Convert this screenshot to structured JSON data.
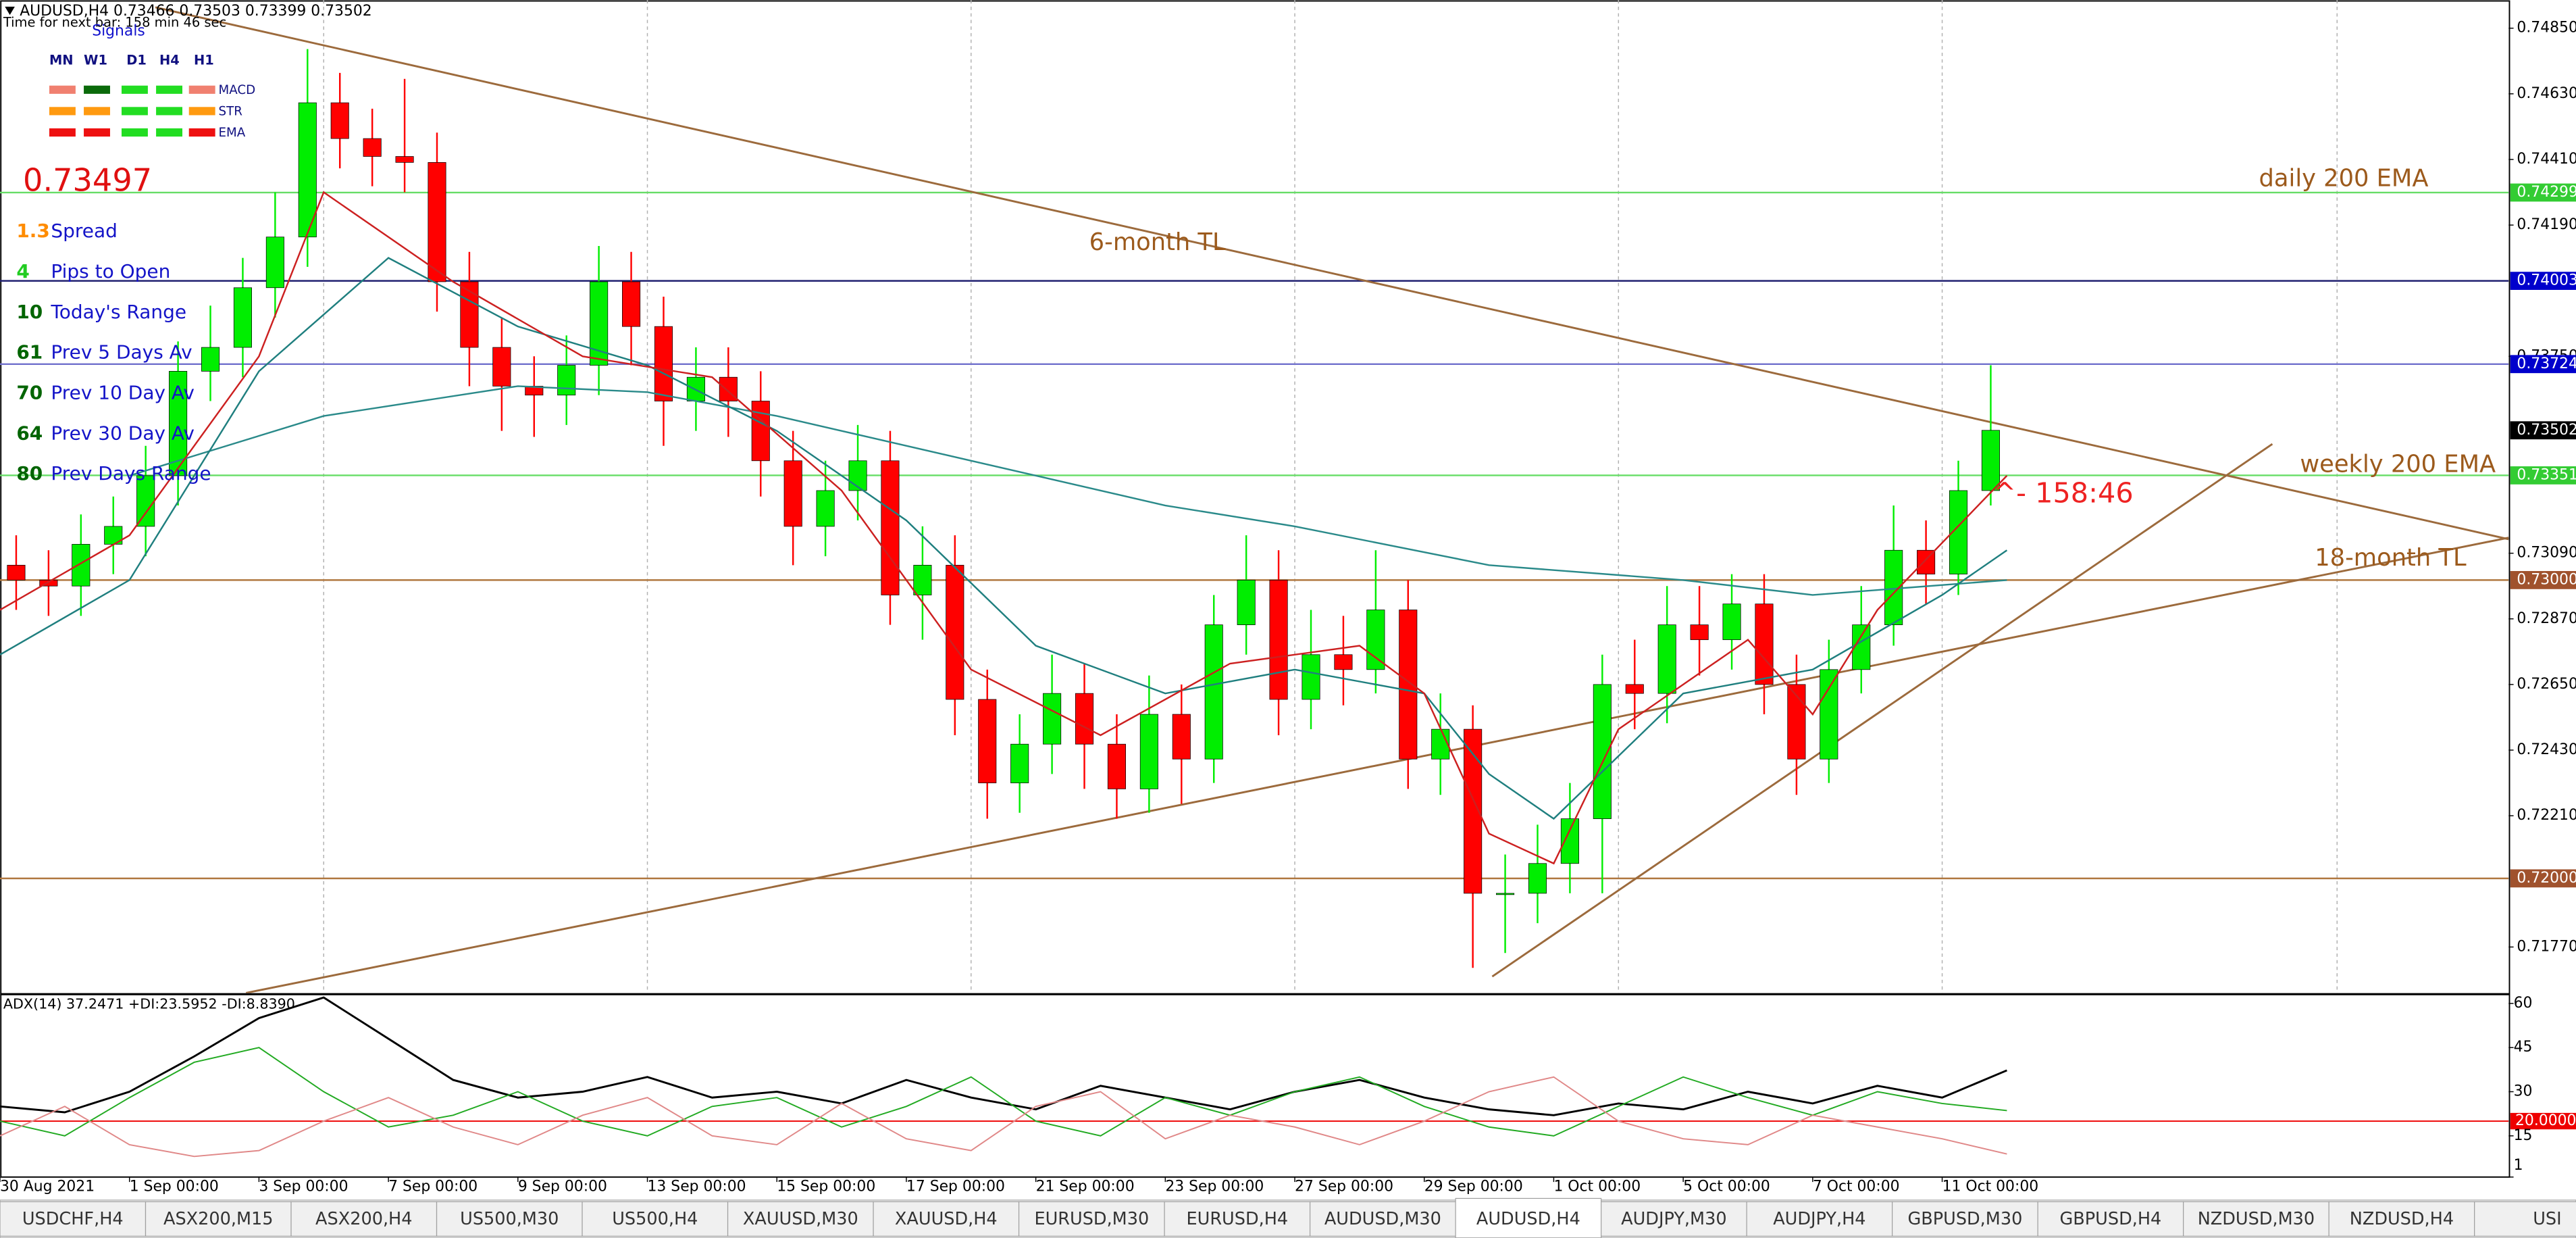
{
  "header": {
    "symbol_line": "AUDUSD,H4  0.73466 0.73503 0.73399 0.73502",
    "timer": "Time for next bar: 158 min 46 sec"
  },
  "signals_panel": {
    "title": "Signals",
    "timeframes": [
      "MN",
      "W1",
      "D1",
      "H4",
      "H1"
    ],
    "indicators": [
      "MACD",
      "STR",
      "EMA"
    ],
    "price": "0.73497",
    "rows": [
      {
        "value": "1.3",
        "label": "Spread"
      },
      {
        "value": "4",
        "label": "Pips to Open"
      },
      {
        "value": "10",
        "label": "Today's Range"
      },
      {
        "value": "61",
        "label": "Prev 5 Days Av"
      },
      {
        "value": "70",
        "label": "Prev 10 Day Av"
      },
      {
        "value": "64",
        "label": "Prev 30 Day Av"
      },
      {
        "value": "80",
        "label": "Prev Days Range"
      }
    ]
  },
  "tabs": [
    "USDCHF,H4",
    "ASX200,M15",
    "ASX200,H4",
    "US500,M30",
    "US500,H4",
    "XAUUSD,M30",
    "XAUUSD,H4",
    "EURUSD,M30",
    "EURUSD,H4",
    "AUDUSD,M30",
    "AUDUSD,H4",
    "AUDJPY,M30",
    "AUDJPY,H4",
    "GBPUSD,M30",
    "GBPUSD,H4",
    "NZDUSD,M30",
    "NZDUSD,H4",
    "USI"
  ],
  "active_tab": 10,
  "chart_data": [
    {
      "type": "candlestick",
      "xlim": [
        0,
        77.5
      ],
      "ylim": [
        0.71616,
        0.74944
      ],
      "xticks": [
        {
          "value": 0,
          "label": "30 Aug 2021"
        },
        {
          "value": 4,
          "label": "1 Sep 00:00"
        },
        {
          "value": 8,
          "label": "3 Sep 00:00"
        },
        {
          "value": 12,
          "label": "7 Sep 00:00"
        },
        {
          "value": 16,
          "label": "9 Sep 00:00"
        },
        {
          "value": 20,
          "label": "13 Sep 00:00"
        },
        {
          "value": 24,
          "label": "15 Sep 00:00"
        },
        {
          "value": 28,
          "label": "17 Sep 00:00"
        },
        {
          "value": 32,
          "label": "21 Sep 00:00"
        },
        {
          "value": 36,
          "label": "23 Sep 00:00"
        },
        {
          "value": 40,
          "label": "27 Sep 00:00"
        },
        {
          "value": 44,
          "label": "29 Sep 00:00"
        },
        {
          "value": 48,
          "label": "1 Oct 00:00"
        },
        {
          "value": 52,
          "label": "5 Oct 00:00"
        },
        {
          "value": 56,
          "label": "7 Oct 00:00"
        },
        {
          "value": 60,
          "label": "11 Oct 00:00"
        }
      ],
      "xgrid": [
        10,
        20,
        30,
        40,
        50,
        60,
        72.2
      ],
      "yticks": [
        {
          "value": 0.7485,
          "label": "0.74850"
        },
        {
          "value": 0.7463,
          "label": "0.74630"
        },
        {
          "value": 0.7441,
          "label": "0.74410"
        },
        {
          "value": 0.7419,
          "label": "0.74190"
        },
        {
          "value": 0.7375,
          "label": "0.73750"
        },
        {
          "value": 0.7309,
          "label": "0.73090"
        },
        {
          "value": 0.7287,
          "label": "0.72870"
        },
        {
          "value": 0.7265,
          "label": "0.72650"
        },
        {
          "value": 0.7243,
          "label": "0.72430"
        },
        {
          "value": 0.7221,
          "label": "0.72210"
        },
        {
          "value": 0.7177,
          "label": "0.71770"
        }
      ],
      "up_color": "#00ee00",
      "down_color": "#ff0000",
      "open": [
        0.7305,
        0.73,
        0.7298,
        0.7312,
        0.7318,
        0.7335,
        0.737,
        0.7378,
        0.7398,
        0.7415,
        0.746,
        0.7448,
        0.7442,
        0.744,
        0.74,
        0.7378,
        0.7365,
        0.7362,
        0.7372,
        0.74,
        0.7385,
        0.736,
        0.7368,
        0.736,
        0.734,
        0.7318,
        0.733,
        0.734,
        0.7295,
        0.7305,
        0.726,
        0.7232,
        0.7245,
        0.7262,
        0.7245,
        0.723,
        0.7255,
        0.724,
        0.7285,
        0.73,
        0.726,
        0.7275,
        0.727,
        0.729,
        0.724,
        0.725,
        0.7195,
        0.7195,
        0.7205,
        0.722,
        0.7265,
        0.7262,
        0.7285,
        0.728,
        0.7292,
        0.7265,
        0.724,
        0.727,
        0.7285,
        0.731,
        0.7302,
        0.733
      ],
      "high": [
        0.7315,
        0.731,
        0.7322,
        0.7328,
        0.7345,
        0.738,
        0.7392,
        0.7408,
        0.743,
        0.7478,
        0.747,
        0.7458,
        0.7468,
        0.745,
        0.741,
        0.7388,
        0.7375,
        0.7382,
        0.7412,
        0.741,
        0.7395,
        0.7378,
        0.7378,
        0.737,
        0.735,
        0.734,
        0.7352,
        0.735,
        0.7318,
        0.7315,
        0.727,
        0.7255,
        0.7275,
        0.7272,
        0.7255,
        0.7268,
        0.7265,
        0.7295,
        0.7315,
        0.731,
        0.729,
        0.7288,
        0.731,
        0.73,
        0.7262,
        0.7258,
        0.7208,
        0.7218,
        0.7232,
        0.7275,
        0.728,
        0.7298,
        0.7298,
        0.7302,
        0.7302,
        0.7275,
        0.728,
        0.7298,
        0.7325,
        0.732,
        0.734,
        0.7372
      ],
      "low": [
        0.729,
        0.7288,
        0.7288,
        0.7302,
        0.7308,
        0.7325,
        0.736,
        0.7368,
        0.7388,
        0.7405,
        0.7438,
        0.7432,
        0.743,
        0.739,
        0.7365,
        0.735,
        0.7348,
        0.7352,
        0.7362,
        0.7372,
        0.7345,
        0.735,
        0.7348,
        0.7328,
        0.7305,
        0.7308,
        0.732,
        0.7285,
        0.728,
        0.7248,
        0.722,
        0.7222,
        0.7235,
        0.723,
        0.722,
        0.7222,
        0.7225,
        0.7232,
        0.7275,
        0.7248,
        0.725,
        0.7258,
        0.7262,
        0.723,
        0.7228,
        0.717,
        0.7175,
        0.7185,
        0.7195,
        0.7195,
        0.725,
        0.7252,
        0.7268,
        0.727,
        0.7255,
        0.7228,
        0.7232,
        0.7262,
        0.7278,
        0.7292,
        0.7295,
        0.7325
      ],
      "close": [
        0.73,
        0.7298,
        0.7312,
        0.7318,
        0.7335,
        0.737,
        0.7378,
        0.7398,
        0.7415,
        0.746,
        0.7448,
        0.7442,
        0.744,
        0.74,
        0.7378,
        0.7365,
        0.7362,
        0.7372,
        0.74,
        0.7385,
        0.736,
        0.7368,
        0.736,
        0.734,
        0.7318,
        0.733,
        0.734,
        0.7295,
        0.7305,
        0.726,
        0.7232,
        0.7245,
        0.7262,
        0.7245,
        0.723,
        0.7255,
        0.724,
        0.7285,
        0.73,
        0.726,
        0.7275,
        0.727,
        0.729,
        0.724,
        0.725,
        0.7195,
        0.7195,
        0.7205,
        0.722,
        0.7265,
        0.7262,
        0.7285,
        0.728,
        0.7292,
        0.7265,
        0.724,
        0.727,
        0.7285,
        0.731,
        0.7302,
        0.733,
        0.73502
      ],
      "overlays": [
        {
          "color": "#2a8a8a",
          "x": [
            4,
            10,
            16,
            20,
            24,
            30,
            36,
            40,
            46,
            52,
            56,
            62
          ],
          "values": [
            0.7335,
            0.7355,
            0.7365,
            0.7363,
            0.7355,
            0.734,
            0.7325,
            0.7318,
            0.7305,
            0.73,
            0.7295,
            0.73
          ]
        },
        {
          "color": "#1f7f7f",
          "x": [
            0,
            4,
            8,
            12,
            16,
            20,
            24,
            28,
            32,
            36,
            40,
            44,
            46,
            48,
            52,
            56,
            60,
            62
          ],
          "values": [
            0.7275,
            0.73,
            0.737,
            0.7408,
            0.7385,
            0.7372,
            0.735,
            0.732,
            0.7278,
            0.7262,
            0.727,
            0.7262,
            0.7235,
            0.722,
            0.7262,
            0.727,
            0.7295,
            0.731
          ]
        },
        {
          "color": "#cc2020",
          "x": [
            0,
            4,
            8,
            10,
            14,
            18,
            22,
            26,
            30,
            34,
            38,
            42,
            44,
            46,
            48,
            50,
            54,
            56,
            58,
            62
          ],
          "values": [
            0.729,
            0.7315,
            0.7375,
            0.743,
            0.74,
            0.7375,
            0.7368,
            0.733,
            0.727,
            0.7248,
            0.7272,
            0.7278,
            0.7262,
            0.7215,
            0.7205,
            0.725,
            0.728,
            0.7255,
            0.729,
            0.7335
          ]
        }
      ],
      "levels": [
        {
          "value": 0.74299,
          "label": "0.74299",
          "color": "#66dd66",
          "bg": "#33cc33"
        },
        {
          "value": 0.74003,
          "label": "0.74003",
          "color": "#202070",
          "bg": "#0000cc"
        },
        {
          "value": 0.73724,
          "label": "0.73724",
          "color": "#7070cc",
          "bg": "#0000cc"
        },
        {
          "value": 0.73351,
          "label": "0.73351",
          "color": "#66dd66",
          "bg": "#33cc33"
        },
        {
          "value": 0.73,
          "label": "0.73000",
          "color": "#b07840",
          "bg": "#a0522d"
        },
        {
          "value": 0.72,
          "label": "0.72000",
          "color": "#b07840",
          "bg": "#a0522d"
        }
      ],
      "current": {
        "value": 0.73502,
        "label": "0.73502",
        "bg": "#000000"
      },
      "trendlines": [
        {
          "color": "#9c6a3c",
          "x": [
            4.8,
            77.5
          ],
          "y": [
            0.7492,
            0.73137
          ]
        },
        {
          "color": "#9c6a3c",
          "x": [
            7.6,
            77.5
          ],
          "y": [
            0.71616,
            0.73142
          ]
        },
        {
          "color": "#9c6a3c",
          "x": [
            46.1,
            70.2
          ],
          "y": [
            0.71671,
            0.73456
          ]
        }
      ],
      "annotations": [
        {
          "text": "6-month TL",
          "color": "#9c5a1c"
        },
        {
          "text": "daily 200 EMA",
          "color": "#9c5a1c"
        },
        {
          "text": "weekly 200 EMA",
          "color": "#9c5a1c"
        },
        {
          "text": "18-month TL",
          "color": "#9c5a1c"
        },
        {
          "text": "^- 158:46",
          "color": "#ee2222"
        }
      ]
    },
    {
      "type": "line",
      "title": "ADX(14) 37.2471 +DI:23.5952 -DI:8.8390",
      "xlim": [
        0,
        77.5
      ],
      "ylim": [
        1,
        63
      ],
      "yticks": [
        60,
        45,
        30,
        15,
        1
      ],
      "x": [
        0,
        2,
        4,
        6,
        8,
        10,
        12,
        14,
        16,
        18,
        20,
        22,
        24,
        26,
        28,
        30,
        32,
        34,
        36,
        38,
        40,
        42,
        44,
        46,
        48,
        50,
        52,
        54,
        56,
        58,
        60,
        62
      ],
      "series": [
        {
          "color": "#000000",
          "values": [
            25,
            23,
            30,
            42,
            55,
            62,
            48,
            34,
            28,
            30,
            35,
            28,
            30,
            26,
            34,
            28,
            24,
            32,
            28,
            24,
            30,
            34,
            28,
            24,
            22,
            26,
            24,
            30,
            26,
            32,
            28,
            37.2471
          ]
        },
        {
          "color": "#22aa22",
          "values": [
            20,
            15,
            28,
            40,
            45,
            30,
            18,
            22,
            30,
            20,
            15,
            25,
            28,
            18,
            25,
            35,
            20,
            15,
            28,
            22,
            30,
            35,
            25,
            18,
            15,
            25,
            35,
            28,
            22,
            30,
            26,
            23.5952
          ]
        },
        {
          "color": "#e08888",
          "values": [
            15,
            25,
            12,
            8,
            10,
            20,
            28,
            18,
            12,
            22,
            28,
            15,
            12,
            26,
            14,
            10,
            25,
            30,
            14,
            22,
            18,
            12,
            20,
            30,
            35,
            20,
            14,
            12,
            22,
            18,
            14,
            8.839
          ]
        }
      ],
      "level": {
        "value": 20,
        "label": "20.0000",
        "color": "#ee0000"
      }
    }
  ]
}
